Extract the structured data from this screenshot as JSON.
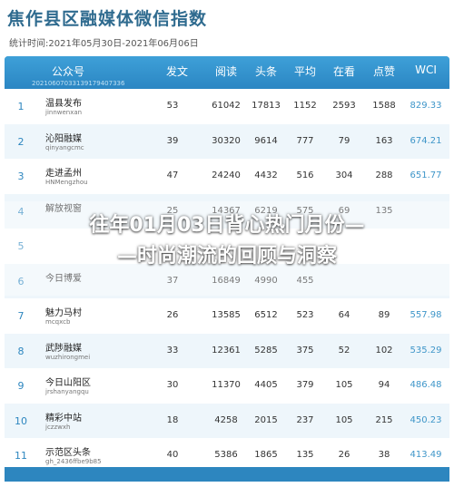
{
  "header": {
    "title": "焦作县区融媒体微信指数",
    "period": "统计时间:2021年05月30日-2021年06月06日"
  },
  "table": {
    "columns": [
      "公众号",
      "发文",
      "阅读",
      "头条",
      "平均",
      "在看",
      "点赞",
      "WCI"
    ],
    "id_watermark": "20210607033139179407336",
    "rows": [
      {
        "rank": "1",
        "name": "温县发布",
        "account": "jinnwenxan",
        "fa": "53",
        "yd": "61042",
        "tt": "17813",
        "pj": "1152",
        "zk": "2593",
        "dz": "1588",
        "wci": "829.33"
      },
      {
        "rank": "2",
        "name": "沁阳融媒",
        "account": "qinyangcmc",
        "fa": "39",
        "yd": "30320",
        "tt": "9614",
        "pj": "777",
        "zk": "79",
        "dz": "163",
        "wci": "674.21"
      },
      {
        "rank": "3",
        "name": "走进孟州",
        "account": "HNMengzhou",
        "fa": "47",
        "yd": "24240",
        "tt": "4432",
        "pj": "516",
        "zk": "304",
        "dz": "288",
        "wci": "651.77"
      },
      {
        "rank": "4",
        "name": "解放视窗",
        "account": "",
        "fa": "25",
        "yd": "14367",
        "tt": "6219",
        "pj": "575",
        "zk": "69",
        "dz": "135",
        "wci": ""
      },
      {
        "rank": "5",
        "name": "",
        "account": "",
        "fa": "",
        "yd": "",
        "tt": "",
        "pj": "",
        "zk": "",
        "dz": "",
        "wci": ""
      },
      {
        "rank": "6",
        "name": "今日博爱",
        "account": "",
        "fa": "37",
        "yd": "16849",
        "tt": "4990",
        "pj": "455",
        "zk": "",
        "dz": "",
        "wci": ""
      },
      {
        "rank": "7",
        "name": "魅力马村",
        "account": "mcqxcb",
        "fa": "26",
        "yd": "13585",
        "tt": "6512",
        "pj": "523",
        "zk": "64",
        "dz": "89",
        "wci": "557.98"
      },
      {
        "rank": "8",
        "name": "武陟融媒",
        "account": "wuzhirongmei",
        "fa": "33",
        "yd": "12361",
        "tt": "5285",
        "pj": "375",
        "zk": "52",
        "dz": "102",
        "wci": "535.29"
      },
      {
        "rank": "9",
        "name": "今日山阳区",
        "account": "jrshanyangqu",
        "fa": "30",
        "yd": "11370",
        "tt": "4405",
        "pj": "379",
        "zk": "105",
        "dz": "94",
        "wci": "486.48"
      },
      {
        "rank": "10",
        "name": "精彩中站",
        "account": "jczzwxh",
        "fa": "18",
        "yd": "4258",
        "tt": "2015",
        "pj": "237",
        "zk": "105",
        "dz": "215",
        "wci": "450.23"
      },
      {
        "rank": "11",
        "name": "示范区头条",
        "account": "gh_2436ffbe9b85",
        "fa": "40",
        "yd": "5386",
        "tt": "1865",
        "pj": "135",
        "zk": "26",
        "dz": "38",
        "wci": "413.49"
      }
    ]
  },
  "overlay": {
    "line1": "往年01月03日背心热门月份—",
    "line2": "—时尚潮流的回顾与洞察"
  }
}
